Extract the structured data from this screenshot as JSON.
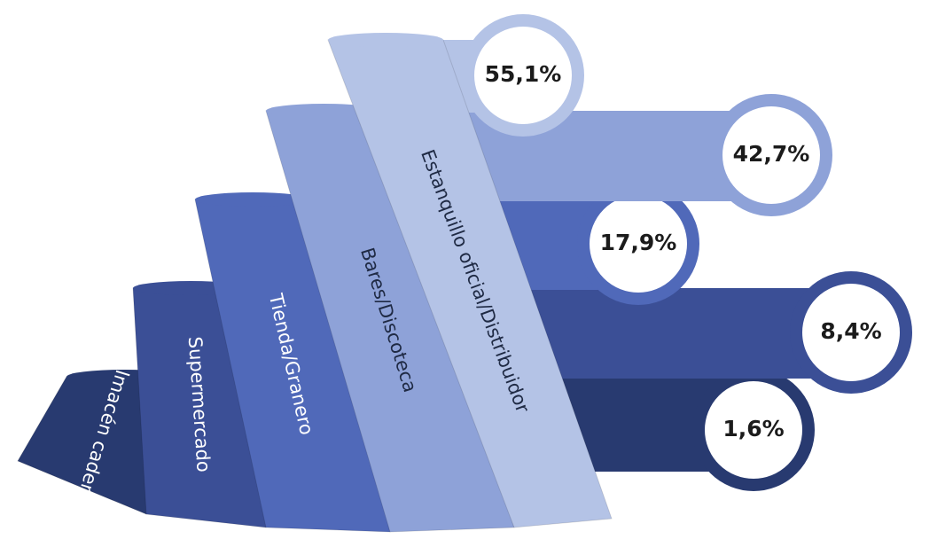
{
  "chart_data": {
    "type": "fan",
    "categories": [
      "Estanquillo oficial/Distribuidor",
      "Bares/Discoteca",
      "Tienda/Granero",
      "Supermercado",
      "Almacén cadena"
    ],
    "values": [
      55.1,
      42.7,
      17.9,
      8.4,
      1.6
    ],
    "value_labels": [
      "55,1%",
      "42,7%",
      "17,9%",
      "8,4%",
      "1,6%"
    ],
    "colors": [
      "#b4c3e6",
      "#8ea2d8",
      "#5069b9",
      "#3b4f96",
      "#283a70"
    ]
  }
}
